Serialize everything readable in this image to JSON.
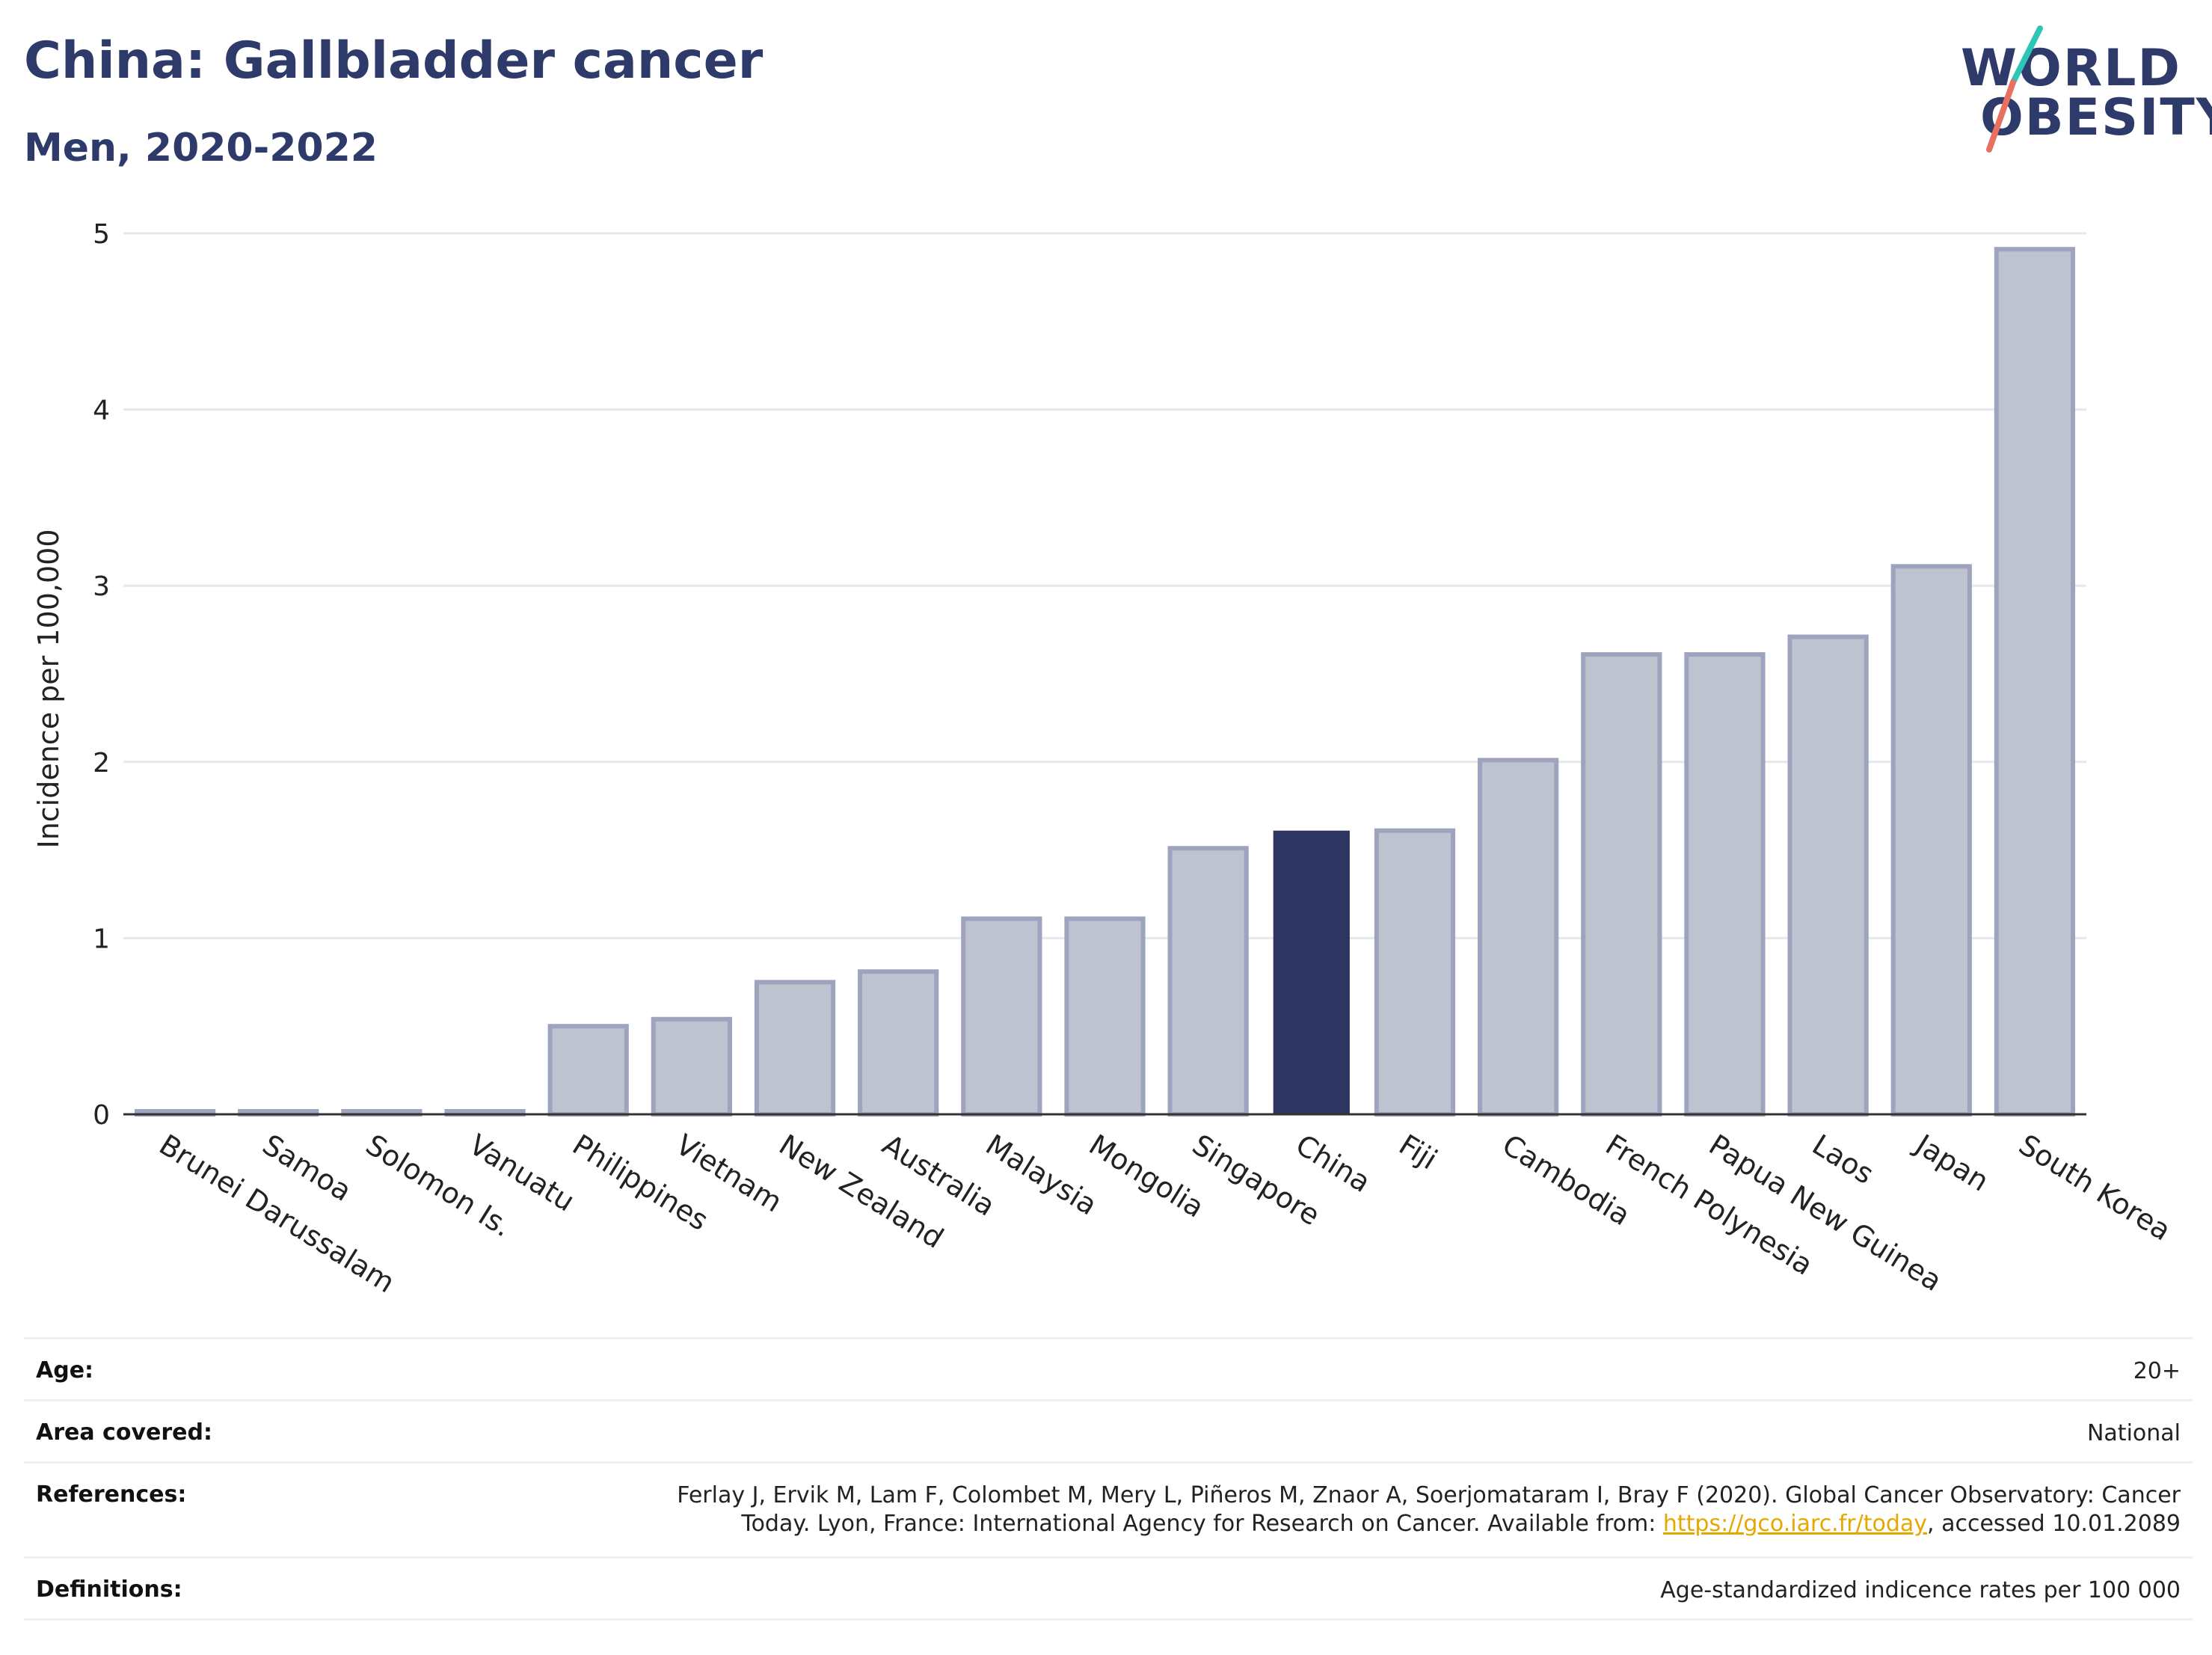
{
  "header": {
    "title": "China: Gallbladder cancer",
    "subtitle": "Men, 2020-2022"
  },
  "logo": {
    "line1": "WORLD",
    "line2": "OBESITY",
    "colors": {
      "text": "#2d3a6a",
      "slash_top": "#2ec4b6",
      "slash_bottom": "#e8705f"
    }
  },
  "colors": {
    "bar_fill": "#bfc3d0",
    "bar_stroke": "#9ea4bd",
    "highlight": "#2c3660",
    "grid": "#e6e8ef",
    "axis": "#333333"
  },
  "chart_data": {
    "type": "bar",
    "title": "China: Gallbladder cancer",
    "subtitle": "Men, 2020-2022",
    "xlabel": "",
    "ylabel": "Incidence per 100,000",
    "ylim": [
      0,
      5
    ],
    "yticks": [
      0,
      1,
      2,
      3,
      4,
      5
    ],
    "grid": true,
    "highlight": "China",
    "categories": [
      "Brunei Darussalam",
      "Samoa",
      "Solomon Is.",
      "Vanuatu",
      "Philippines",
      "Vietnam",
      "New Zealand",
      "Australia",
      "Malaysia",
      "Mongolia",
      "Singapore",
      "China",
      "Fiji",
      "Cambodia",
      "French Polynesia",
      "Papua New Guinea",
      "Laos",
      "Japan",
      "South Korea"
    ],
    "values": [
      0,
      0,
      0,
      0,
      0.5,
      0.54,
      0.75,
      0.81,
      1.11,
      1.11,
      1.51,
      1.61,
      1.61,
      2.01,
      2.61,
      2.61,
      2.71,
      3.11,
      4.91
    ]
  },
  "footer": {
    "age": {
      "label": "Age:",
      "value": "20+"
    },
    "area": {
      "label": "Area covered:",
      "value": "National"
    },
    "references": {
      "label": "References:",
      "line1": "Ferlay J, Ervik M, Lam F, Colombet M, Mery L, Piñeros M, Znaor A, Soerjomataram I, Bray F (2020). Global Cancer Observatory: Cancer",
      "line2_pre": "Today. Lyon, France: International Agency for Research on Cancer. Available from: ",
      "link": "https://gco.iarc.fr/today",
      "line2_post": ", accessed 10.01.2089"
    },
    "definitions": {
      "label": "Definitions:",
      "value": "Age-standardized indicence rates per 100 000"
    }
  }
}
